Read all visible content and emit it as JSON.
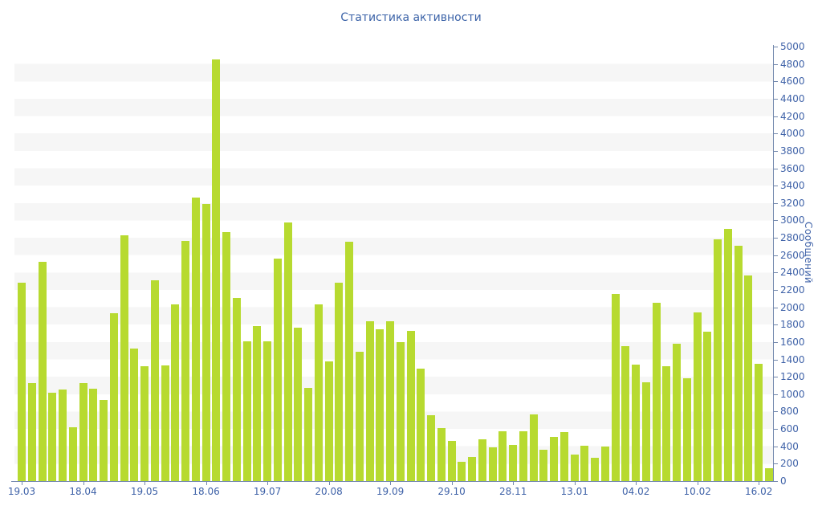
{
  "title": "Статистика активности",
  "chart_data": {
    "type": "bar",
    "title": "Статистика активности",
    "xlabel": "",
    "ylabel": "Сообщений",
    "ylim": [
      0,
      5000
    ],
    "y_tick_step": 200,
    "legend_position": "none",
    "grid": "alternating horizontal gray bands every 200 units",
    "bar_color": "#b7da30",
    "categories": [
      "19.03",
      "18.04",
      "19.05",
      "18.06",
      "19.07",
      "20.08",
      "19.09",
      "29.10",
      "28.11",
      "13.01",
      "04.02",
      "10.02",
      "16.02"
    ],
    "category_bar_indices": [
      0,
      6,
      12,
      18,
      24,
      30,
      36,
      42,
      48,
      54,
      60,
      66,
      72
    ],
    "values": [
      2280,
      1130,
      2520,
      1020,
      1050,
      620,
      1130,
      1060,
      930,
      1930,
      2830,
      1530,
      1320,
      2310,
      1330,
      2030,
      2760,
      3260,
      3190,
      4855,
      2870,
      2110,
      1610,
      1780,
      1610,
      2560,
      2980,
      1770,
      1070,
      2030,
      1380,
      2280,
      2750,
      1490,
      1840,
      1750,
      1840,
      1600,
      1730,
      1290,
      760,
      610,
      460,
      220,
      280,
      480,
      390,
      570,
      420,
      570,
      770,
      360,
      510,
      560,
      310,
      410,
      270,
      400,
      2150,
      1550,
      1340,
      1140,
      2050,
      1320,
      1580,
      1180,
      1940,
      1720,
      2780,
      2900,
      2710,
      2370,
      1350,
      150
    ]
  },
  "colors": {
    "text_blue": "#3f62a8",
    "axis_line": "#7388ad",
    "band_gray": "#f6f6f6",
    "bar_green": "#b7da30",
    "background": "#ffffff"
  }
}
